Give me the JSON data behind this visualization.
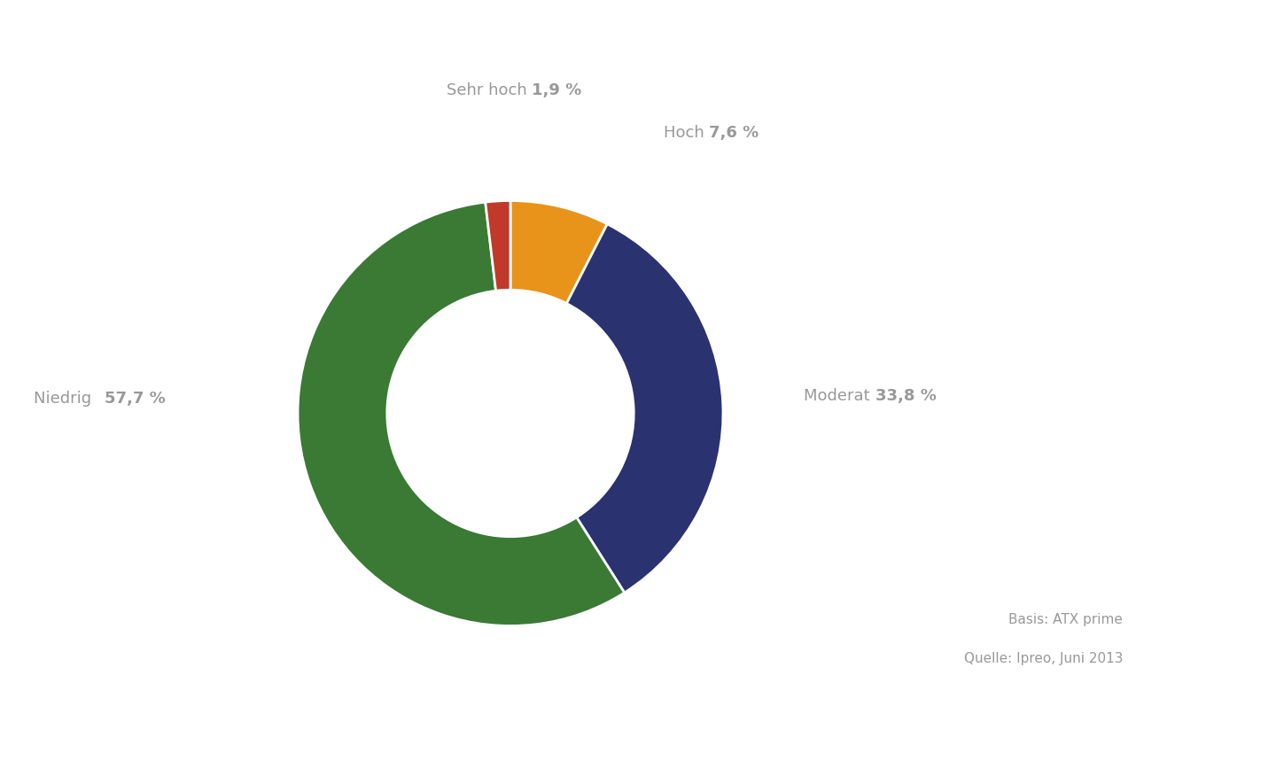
{
  "slices_ordered": [
    {
      "label_normal": "Hoch",
      "label_bold": "7,6 %",
      "value": 7.6,
      "color": "#e8931a"
    },
    {
      "label_normal": "Moderat",
      "label_bold": "33,8 %",
      "value": 33.8,
      "color": "#2b3270"
    },
    {
      "label_normal": "Niedrig",
      "label_bold": "57,7 %",
      "value": 57.7,
      "color": "#3a7a34"
    },
    {
      "label_normal": "Sehr hoch",
      "label_bold": "1,9 %",
      "value": 1.9,
      "color": "#c0392b"
    }
  ],
  "source_line1": "Basis: ATX prime",
  "source_line2": "Quelle: Ipreo, Juni 2013",
  "label_color": "#999999",
  "background_color": "#ffffff",
  "donut_width": 0.42,
  "label_fontsize": 13,
  "source_fontsize": 11
}
